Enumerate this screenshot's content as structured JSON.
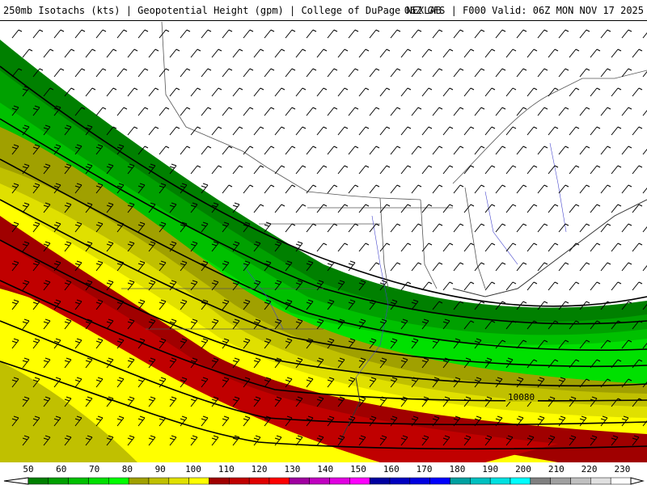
{
  "header": {
    "title_left": "250mb Isotachs (kts) | Geopotential Height (gpm) | College of DuPage NEXLAB",
    "title_right": "06Z GFS | F000 Valid: 06Z MON NOV 17 2025"
  },
  "map": {
    "contour_label": "10080"
  },
  "legend": {
    "ticks": [
      "50",
      "60",
      "70",
      "80",
      "90",
      "100",
      "110",
      "120",
      "130",
      "140",
      "150",
      "160",
      "170",
      "180",
      "190",
      "200",
      "210",
      "220",
      "230"
    ],
    "colors": [
      "#008000",
      "#00a000",
      "#00c000",
      "#00e000",
      "#00ff00",
      "#a0a000",
      "#c0c000",
      "#e0e000",
      "#ffff00",
      "#a00000",
      "#c00000",
      "#e00000",
      "#ff0000",
      "#a000a0",
      "#c000c0",
      "#e000e0",
      "#ff00ff",
      "#0000a0",
      "#0000c0",
      "#0000e0",
      "#0000ff",
      "#00a0a0",
      "#00c0c0",
      "#00e0e0",
      "#00ffff",
      "#808080",
      "#a0a0a0",
      "#c0c0c0",
      "#e0e0e0",
      "#ffffff"
    ]
  }
}
